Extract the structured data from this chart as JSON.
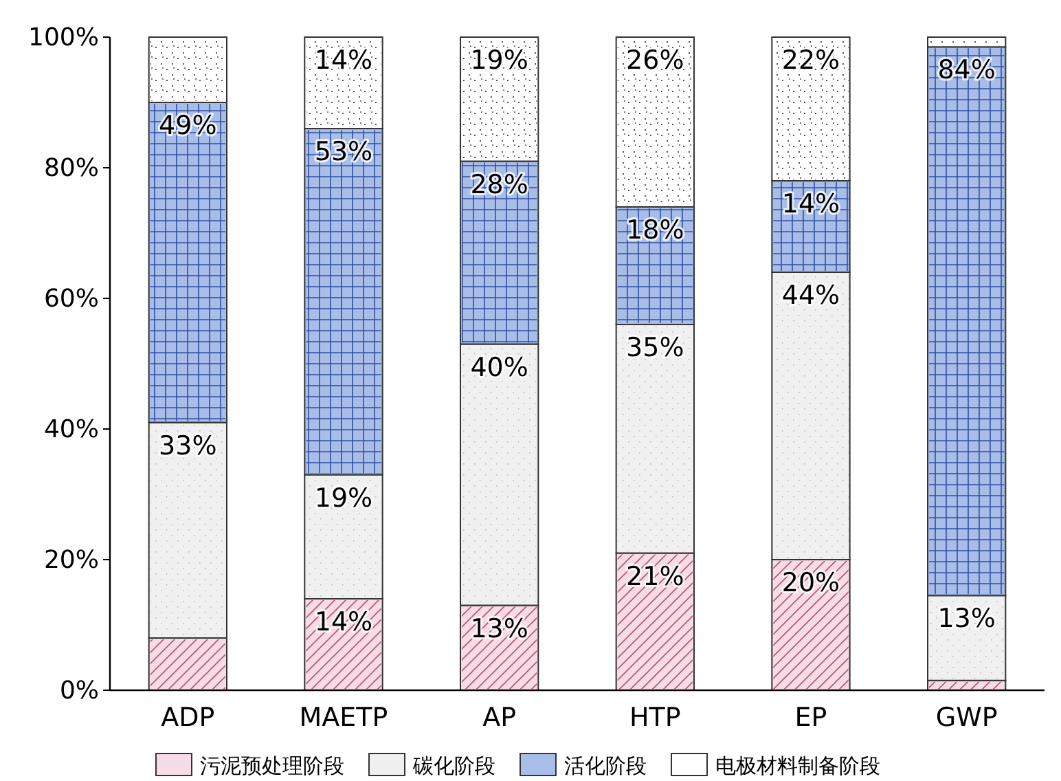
{
  "chart_data": {
    "type": "bar",
    "stacked": true,
    "categories": [
      "ADP",
      "MAETP",
      "AP",
      "HTP",
      "EP",
      "GWP"
    ],
    "series": [
      {
        "name": "污泥预处理阶段",
        "color": "#f5dce6",
        "values": [
          8,
          14,
          13,
          21,
          20,
          1.5
        ],
        "value_labels": [
          null,
          "14%",
          "13%",
          "21%",
          "20%",
          null
        ]
      },
      {
        "name": "碳化阶段",
        "color": "#f0f0f0",
        "values": [
          33,
          19,
          40,
          35,
          44,
          13
        ],
        "value_labels": [
          "33%",
          "19%",
          "40%",
          "35%",
          "44%",
          "13%"
        ]
      },
      {
        "name": "活化阶段",
        "color": "#a8bde8",
        "values": [
          49,
          53,
          28,
          18,
          14,
          84
        ],
        "value_labels": [
          "49%",
          "53%",
          "28%",
          "18%",
          "14%",
          "84%"
        ]
      },
      {
        "name": "电极材料制备阶段",
        "color": "#ffffff",
        "values": [
          10,
          14,
          19,
          26,
          22,
          1.5
        ],
        "value_labels": [
          null,
          "14%",
          "19%",
          "26%",
          "22%",
          null
        ]
      }
    ],
    "ylim": [
      0,
      100
    ],
    "yticks": [
      {
        "value": 0,
        "label": "0%"
      },
      {
        "value": 20,
        "label": "20%"
      },
      {
        "value": 40,
        "label": "40%"
      },
      {
        "value": 60,
        "label": "60%"
      },
      {
        "value": 80,
        "label": "80%"
      },
      {
        "value": 100,
        "label": "100%"
      }
    ],
    "grid": false,
    "legend": "bottom"
  }
}
